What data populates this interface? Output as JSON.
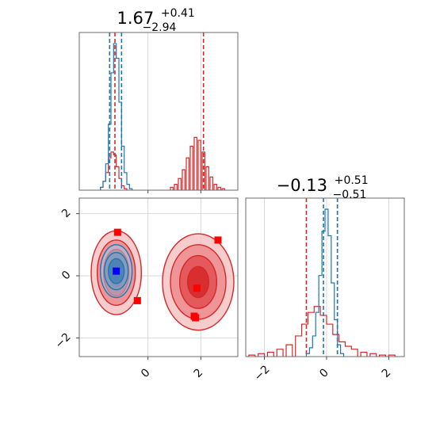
{
  "chart_data": [
    {
      "panel": "top-left",
      "type": "histogram",
      "title_main": "1.67",
      "title_sup": "+0.41",
      "title_sub": "−2.94",
      "xlim": [
        -2.6,
        3.4
      ],
      "grid": true,
      "series": [
        {
          "color": "#1f77b4",
          "bins_x": [
            -1.75,
            -1.65,
            -1.55,
            -1.45,
            -1.35,
            -1.25,
            -1.15,
            -1.05,
            -0.95,
            -0.85,
            -0.75,
            -0.65
          ],
          "heights": [
            2,
            6,
            18,
            45,
            80,
            100,
            90,
            60,
            30,
            12,
            4,
            1
          ],
          "lines_x": [
            -1.45,
            -1.0
          ]
        },
        {
          "color": "#d62728",
          "bins_x": [
            -1.75,
            -1.65,
            -1.55,
            -1.45,
            -1.35,
            -1.25,
            -1.15,
            -1.05,
            -0.95,
            -0.85,
            0.9,
            1.05,
            1.2,
            1.35,
            1.5,
            1.65,
            1.8,
            1.95,
            2.1,
            2.25,
            2.4,
            2.55,
            2.7,
            2.85
          ],
          "heights": [
            2,
            6,
            12,
            22,
            26,
            24,
            16,
            8,
            3,
            1,
            2,
            4,
            8,
            14,
            22,
            30,
            36,
            34,
            26,
            16,
            9,
            4,
            2,
            1
          ],
          "lines_x": [
            -1.25,
            2.1
          ]
        }
      ]
    },
    {
      "panel": "bottom-left",
      "type": "contour",
      "xlim": [
        -2.6,
        3.4
      ],
      "ylim": [
        -2.6,
        2.5
      ],
      "xticks": [
        "0",
        "2"
      ],
      "xtick_values": [
        0,
        2
      ],
      "yticks": [
        "2",
        "0",
        "−2"
      ],
      "ytick_values": [
        2,
        0,
        -2
      ],
      "grid": true,
      "modes": [
        {
          "color": "#d62728",
          "cx": -1.2,
          "cy": 0.1,
          "rx": [
            0.95,
            0.72,
            0.48,
            0.28
          ],
          "ry": [
            1.35,
            1.05,
            0.75,
            0.45
          ]
        },
        {
          "color": "#d62728",
          "cx": 1.9,
          "cy": -0.2,
          "rx": [
            1.35,
            1.05,
            0.7,
            0.4
          ],
          "ry": [
            1.55,
            1.2,
            0.85,
            0.5
          ]
        },
        {
          "color": "#1f77b4",
          "cx": -1.2,
          "cy": 0.15,
          "rx": [
            0.6,
            0.45,
            0.3
          ],
          "ry": [
            0.85,
            0.6,
            0.4
          ]
        }
      ],
      "markers": [
        {
          "color": "#ff0000",
          "x": [
            -1.15,
            -0.4,
            2.65,
            1.85,
            1.75,
            1.8
          ],
          "y": [
            1.4,
            -0.8,
            1.15,
            -0.4,
            -1.3,
            -1.35
          ]
        },
        {
          "color": "#0000ff",
          "x": [
            -1.2
          ],
          "y": [
            0.15
          ]
        }
      ]
    },
    {
      "panel": "bottom-right",
      "type": "histogram",
      "title_main": "−0.13",
      "title_sup": "+0.51",
      "title_sub": "−0.51",
      "xlim": [
        -2.6,
        2.5
      ],
      "xticks": [
        "−2",
        "0",
        "2"
      ],
      "xtick_values": [
        -2,
        0,
        2
      ],
      "grid": true,
      "series": [
        {
          "color": "#1f77b4",
          "bins_x": [
            -0.6,
            -0.5,
            -0.4,
            -0.3,
            -0.2,
            -0.1,
            0.0,
            0.1,
            0.2,
            0.3,
            0.4,
            0.5
          ],
          "heights": [
            2,
            6,
            14,
            30,
            55,
            85,
            100,
            82,
            50,
            25,
            8,
            2
          ],
          "lines_x": [
            -0.1,
            0.35
          ]
        },
        {
          "color": "#d62728",
          "bins_x": [
            -2.4,
            -2.1,
            -1.8,
            -1.5,
            -1.2,
            -0.9,
            -0.7,
            -0.5,
            -0.3,
            -0.1,
            0.1,
            0.3,
            0.5,
            0.7,
            0.9,
            1.2,
            1.5,
            1.8,
            2.1
          ],
          "heights": [
            1,
            2,
            3,
            5,
            8,
            14,
            22,
            30,
            34,
            28,
            22,
            15,
            10,
            7,
            5,
            3,
            2,
            1,
            1
          ],
          "lines_x": [
            -0.65,
            0.35
          ]
        }
      ]
    }
  ]
}
